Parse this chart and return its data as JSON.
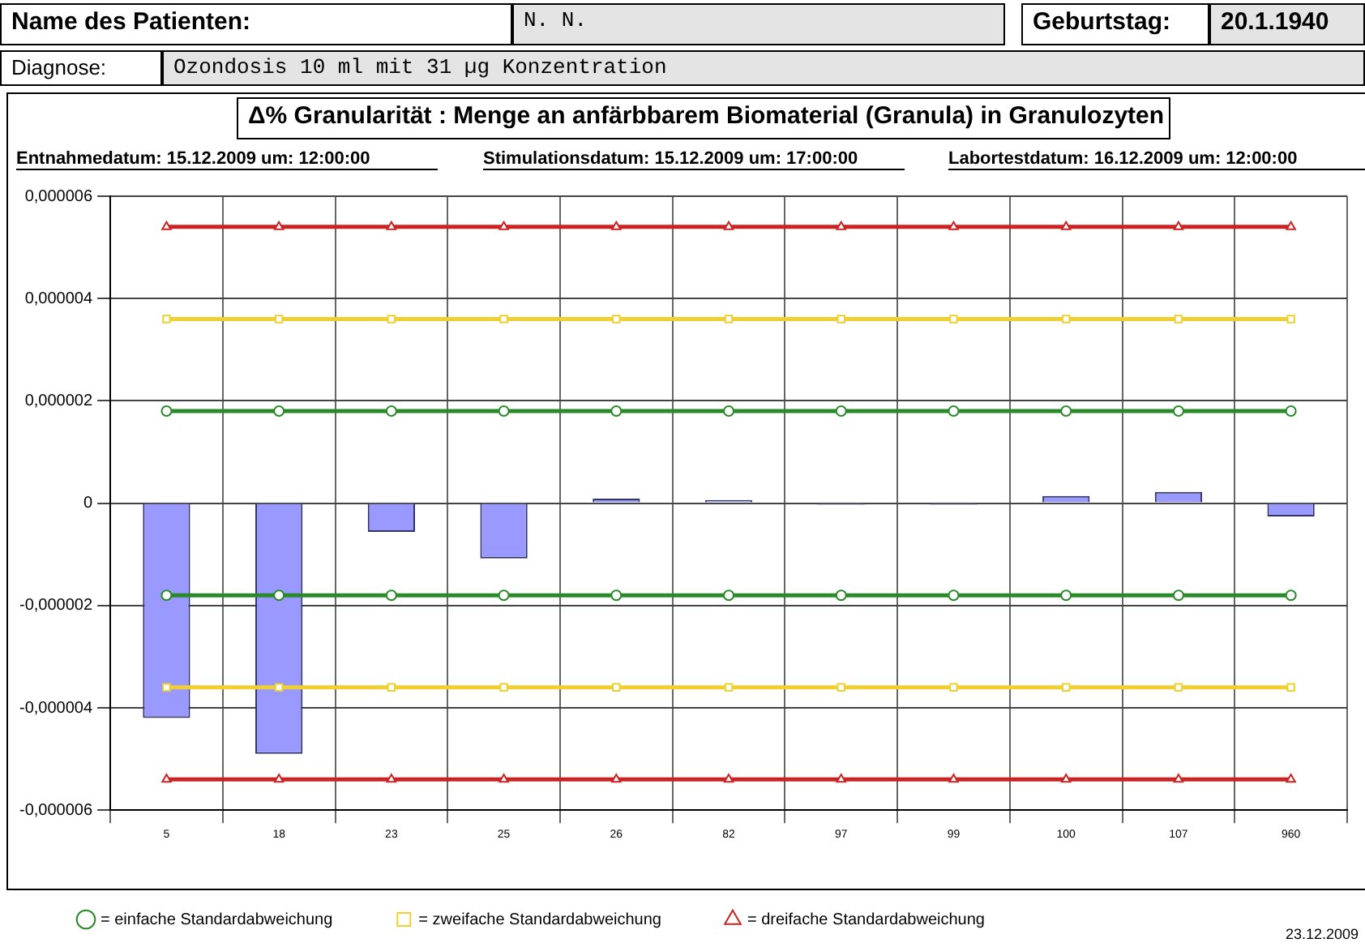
{
  "chart_data": {
    "type": "bar",
    "title": "Δ% Granularität : Menge an anfärbbarem Biomaterial (Granula) in Granulozyten",
    "annotations": [
      "Name des Patienten:",
      "N. N.",
      "Geburtstag:",
      "20.1.1940",
      "Diagnose:",
      "Ozondosis 10 ml mit 31 µg Konzentration",
      "Entnahmedatum: 15.12.2009 um: 12:00:00",
      "Stimulationsdatum: 15.12.2009 um: 17:00:00",
      "Labortestdatum: 16.12.2009 um: 12:00:00",
      "23.12.2009"
    ],
    "categories": [
      "5",
      "18",
      "23",
      "25",
      "26",
      "82",
      "97",
      "99",
      "100",
      "107",
      "960"
    ],
    "series": [
      {
        "color": "#9999ff",
        "values": [
          -4.2e-06,
          -4.9e-06,
          -5.6e-07,
          -1.08e-06,
          9e-08,
          6e-08,
          -3e-08,
          -3e-08,
          1.4e-07,
          2.2e-07,
          -2.6e-07
        ]
      },
      {
        "type": "line",
        "name": "= einfache Standardabweichung",
        "color": "#2a8a2a",
        "marker": "circle",
        "values": [
          1.8e-06,
          1.8e-06,
          1.8e-06,
          1.8e-06,
          1.8e-06,
          1.8e-06,
          1.8e-06,
          1.8e-06,
          1.8e-06,
          1.8e-06,
          1.8e-06
        ]
      },
      {
        "type": "line",
        "color": "#2a8a2a",
        "marker": "circle",
        "values": [
          -1.8e-06,
          -1.8e-06,
          -1.8e-06,
          -1.8e-06,
          -1.8e-06,
          -1.8e-06,
          -1.8e-06,
          -1.8e-06,
          -1.8e-06,
          -1.8e-06,
          -1.8e-06
        ]
      },
      {
        "type": "line",
        "name": "= zweifache Standardabweichung",
        "color": "#f0d030",
        "marker": "square",
        "values": [
          3.6e-06,
          3.6e-06,
          3.6e-06,
          3.6e-06,
          3.6e-06,
          3.6e-06,
          3.6e-06,
          3.6e-06,
          3.6e-06,
          3.6e-06,
          3.6e-06
        ]
      },
      {
        "type": "line",
        "color": "#f0d030",
        "marker": "square",
        "values": [
          -3.6e-06,
          -3.6e-06,
          -3.6e-06,
          -3.6e-06,
          -3.6e-06,
          -3.6e-06,
          -3.6e-06,
          -3.6e-06,
          -3.6e-06,
          -3.6e-06,
          -3.6e-06
        ]
      },
      {
        "type": "line",
        "name": "= dreifache Standardabweichung",
        "color": "#cc2222",
        "marker": "triangle",
        "values": [
          5.4e-06,
          5.4e-06,
          5.4e-06,
          5.4e-06,
          5.4e-06,
          5.4e-06,
          5.4e-06,
          5.4e-06,
          5.4e-06,
          5.4e-06,
          5.4e-06
        ]
      },
      {
        "type": "line",
        "color": "#cc2222",
        "marker": "triangle",
        "values": [
          -5.4e-06,
          -5.4e-06,
          -5.4e-06,
          -5.4e-06,
          -5.4e-06,
          -5.4e-06,
          -5.4e-06,
          -5.4e-06,
          -5.4e-06,
          -5.4e-06,
          -5.4e-06
        ]
      }
    ],
    "ylim": [
      -6e-06,
      6e-06
    ],
    "yticks": [
      {
        "value": -6e-06,
        "label": "-0,000006"
      },
      {
        "value": -4e-06,
        "label": "-0,000004"
      },
      {
        "value": -2e-06,
        "label": "-0,000002"
      },
      0,
      {
        "value": 2e-06,
        "label": "0,000002"
      },
      {
        "value": 4e-06,
        "label": "0,000004"
      },
      {
        "value": 6e-06,
        "label": "0,000006"
      }
    ],
    "grid": true,
    "legend": "bottom"
  }
}
